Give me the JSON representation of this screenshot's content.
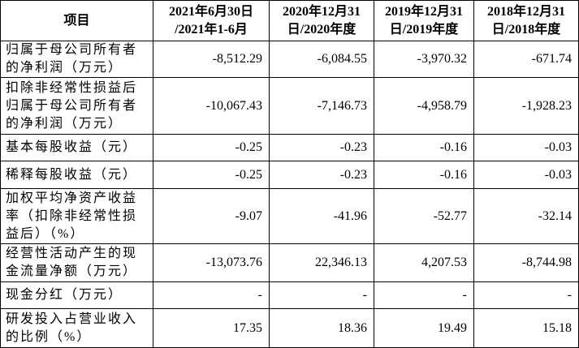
{
  "table": {
    "header": [
      [
        "项目"
      ],
      [
        "2021年6月30日",
        "/2021年1-6月"
      ],
      [
        "2020年12月31",
        "日/2020年度"
      ],
      [
        "2019年12月31",
        "日/2019年度"
      ],
      [
        "2018年12月31",
        "日/2018年度"
      ]
    ],
    "rows": [
      [
        [
          "归属于母公司所有者",
          "的净利润（万元）"
        ],
        "-8,512.29",
        "-6,084.55",
        "-3,970.32",
        "-671.74"
      ],
      [
        [
          "扣除非经常性损益后",
          "归属于母公司所有者",
          "的净利润（万元）"
        ],
        "-10,067.43",
        "-7,146.73",
        "-4,958.79",
        "-1,928.23"
      ],
      [
        [
          "基本每股收益（元）"
        ],
        "-0.25",
        "-0.23",
        "-0.16",
        "-0.03"
      ],
      [
        [
          "稀释每股收益（元）"
        ],
        "-0.25",
        "-0.23",
        "-0.16",
        "-0.03"
      ],
      [
        [
          "加权平均净资产收益",
          "率（扣除非经常性损",
          "益后）（%）"
        ],
        "-9.07",
        "-41.96",
        "-52.77",
        "-32.14"
      ],
      [
        [
          "经营性活动产生的现",
          "金流量净额（万元）"
        ],
        "-13,073.76",
        "22,346.13",
        "4,207.53",
        "-8,744.98"
      ],
      [
        [
          "现金分红（万元）"
        ],
        "-",
        "-",
        "-",
        "-"
      ],
      [
        [
          "研发投入占营业收入",
          "的比例（%）"
        ],
        "17.35",
        "18.36",
        "19.49",
        "15.18"
      ]
    ]
  }
}
